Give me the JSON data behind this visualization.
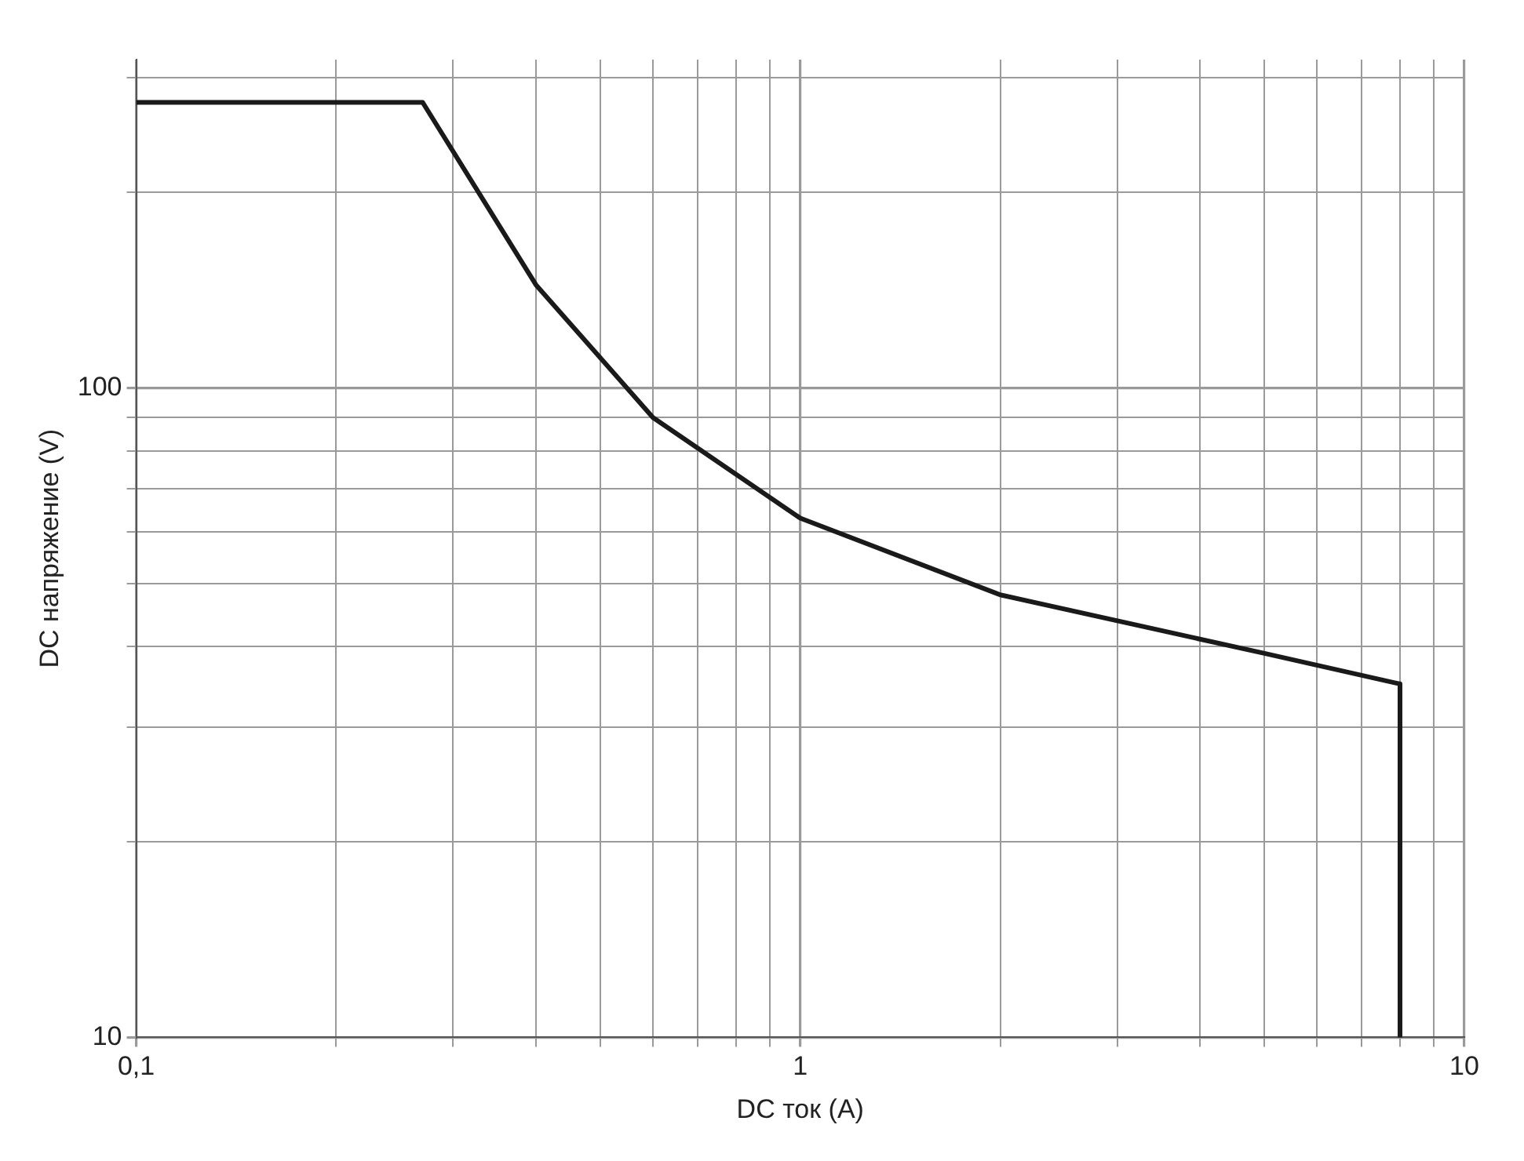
{
  "chart_data": {
    "type": "line",
    "xlabel": "DC ток (A)",
    "ylabel": "DC напряжение (V)",
    "log": "xy",
    "grid": true,
    "legend": false,
    "marker": "none",
    "line_style": "solid",
    "xlim": [
      0.1,
      10
    ],
    "ylim": [
      10,
      320
    ],
    "xticks": [
      {
        "value": 0.1,
        "label": "0,1"
      },
      {
        "value": 0.2,
        "label": null
      },
      {
        "value": 0.3,
        "label": null
      },
      {
        "value": 0.4,
        "label": null
      },
      {
        "value": 0.5,
        "label": null
      },
      {
        "value": 0.6,
        "label": null
      },
      {
        "value": 0.7,
        "label": null
      },
      {
        "value": 0.8,
        "label": null
      },
      {
        "value": 0.9,
        "label": null
      },
      1,
      {
        "value": 2,
        "label": null
      },
      {
        "value": 3,
        "label": null
      },
      {
        "value": 4,
        "label": null
      },
      {
        "value": 5,
        "label": null
      },
      {
        "value": 6,
        "label": null
      },
      {
        "value": 7,
        "label": null
      },
      {
        "value": 8,
        "label": null
      },
      {
        "value": 9,
        "label": null
      },
      10
    ],
    "yticks": [
      10,
      {
        "value": 20,
        "label": null
      },
      {
        "value": 30,
        "label": null
      },
      {
        "value": 40,
        "label": null
      },
      {
        "value": 50,
        "label": null
      },
      {
        "value": 60,
        "label": null
      },
      {
        "value": 70,
        "label": null
      },
      {
        "value": 80,
        "label": null
      },
      {
        "value": 90,
        "label": null
      },
      100,
      {
        "value": 200,
        "label": null
      },
      {
        "value": 300,
        "label": null
      }
    ],
    "series": [
      {
        "color": "#1a1a1a",
        "x": [
          0.1,
          0.27,
          0.4,
          0.6,
          1,
          2,
          5,
          8,
          8
        ],
        "values": [
          275,
          275,
          144,
          90,
          63,
          48,
          39,
          35,
          10
        ]
      }
    ]
  }
}
